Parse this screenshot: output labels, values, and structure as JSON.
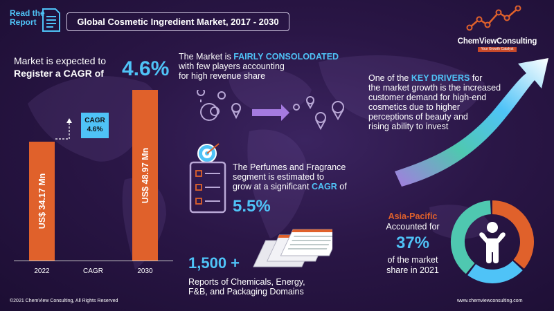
{
  "header": {
    "read_line1": "Read the",
    "read_line2": "Report",
    "title": "Global Cosmetic Ingredient Market, 2017 - 2030"
  },
  "logo": {
    "name": "ChemViewConsulting",
    "tagline": "Your Growth Catalyst"
  },
  "cagr_section": {
    "line1": "Market is expected to",
    "line2": "Register a CAGR of",
    "value": "4.6%"
  },
  "chart_data": {
    "type": "bar",
    "categories": [
      "2022",
      "CAGR",
      "2030"
    ],
    "values": [
      34.17,
      null,
      48.97
    ],
    "bar_labels": [
      "US$ 34.17 Mn",
      "",
      "US$ 48.97 Mn"
    ],
    "annotation": {
      "line1": "CAGR",
      "line2": "4.6%"
    }
  },
  "consolidation": {
    "pre": "The Market is ",
    "highlight": "FAIRLY CONSOLODATED",
    "line2": "with few players accounting",
    "line3": "for high revenue share"
  },
  "drivers": {
    "pre": "One of the ",
    "highlight": "KEY DRIVERS",
    "post": " for",
    "lines": [
      "the market growth is the increased",
      "customer demand for high-end",
      "cosmetics due to higher",
      "perceptions of beauty and",
      "rising ability to invest"
    ]
  },
  "perfumes": {
    "line1": "The Perfumes and Fragrance",
    "line2": "segment is estimated to",
    "line3_pre": "grow at a significant ",
    "line3_hl": "CAGR",
    "line3_post": " of",
    "value": "5.5%"
  },
  "reports": {
    "count": "1,500 +",
    "line1": "Reports of Chemicals, Energy,",
    "line2": "F&B, and Packaging Domains"
  },
  "asia": {
    "region": "Asia-Pacific",
    "line": "Accounted for",
    "value": "37%",
    "foot1": "of the market",
    "foot2": "share in 2021",
    "share": 0.37
  },
  "footer": {
    "copyright": "©2021 ChemView Consulting, All Rights Reserved",
    "url": "www.chemviewconsulting.com"
  },
  "colors": {
    "orange": "#e0612b",
    "blue": "#4fc3f7",
    "teal": "#4fc8b0",
    "background": "#2a1646"
  }
}
